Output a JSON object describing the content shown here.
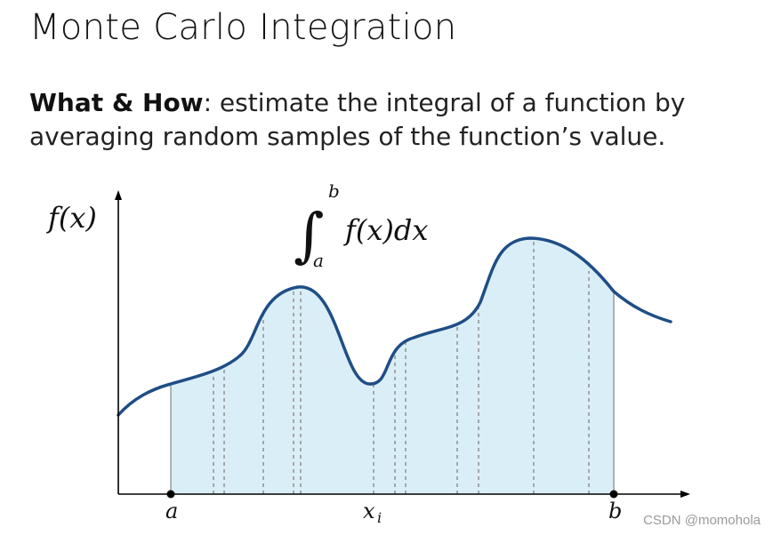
{
  "title": "Monte Carlo Integration",
  "description": {
    "bold": "What & How",
    "rest": ": estimate the integral of a function by averaging random samples of the function’s value."
  },
  "diagram": {
    "y_label": "f(x)",
    "integral": {
      "lower": "a",
      "upper": "b",
      "integrand": "f(x)dx"
    },
    "x_labels": {
      "a": "a",
      "xi": "x",
      "xi_sub": "i",
      "b": "b"
    },
    "colors": {
      "curve": "#1f4e86",
      "fill": "#daeef7",
      "axis": "#000000",
      "samples": "#8a8a8a"
    }
  },
  "watermark": "CSDN @momohola"
}
